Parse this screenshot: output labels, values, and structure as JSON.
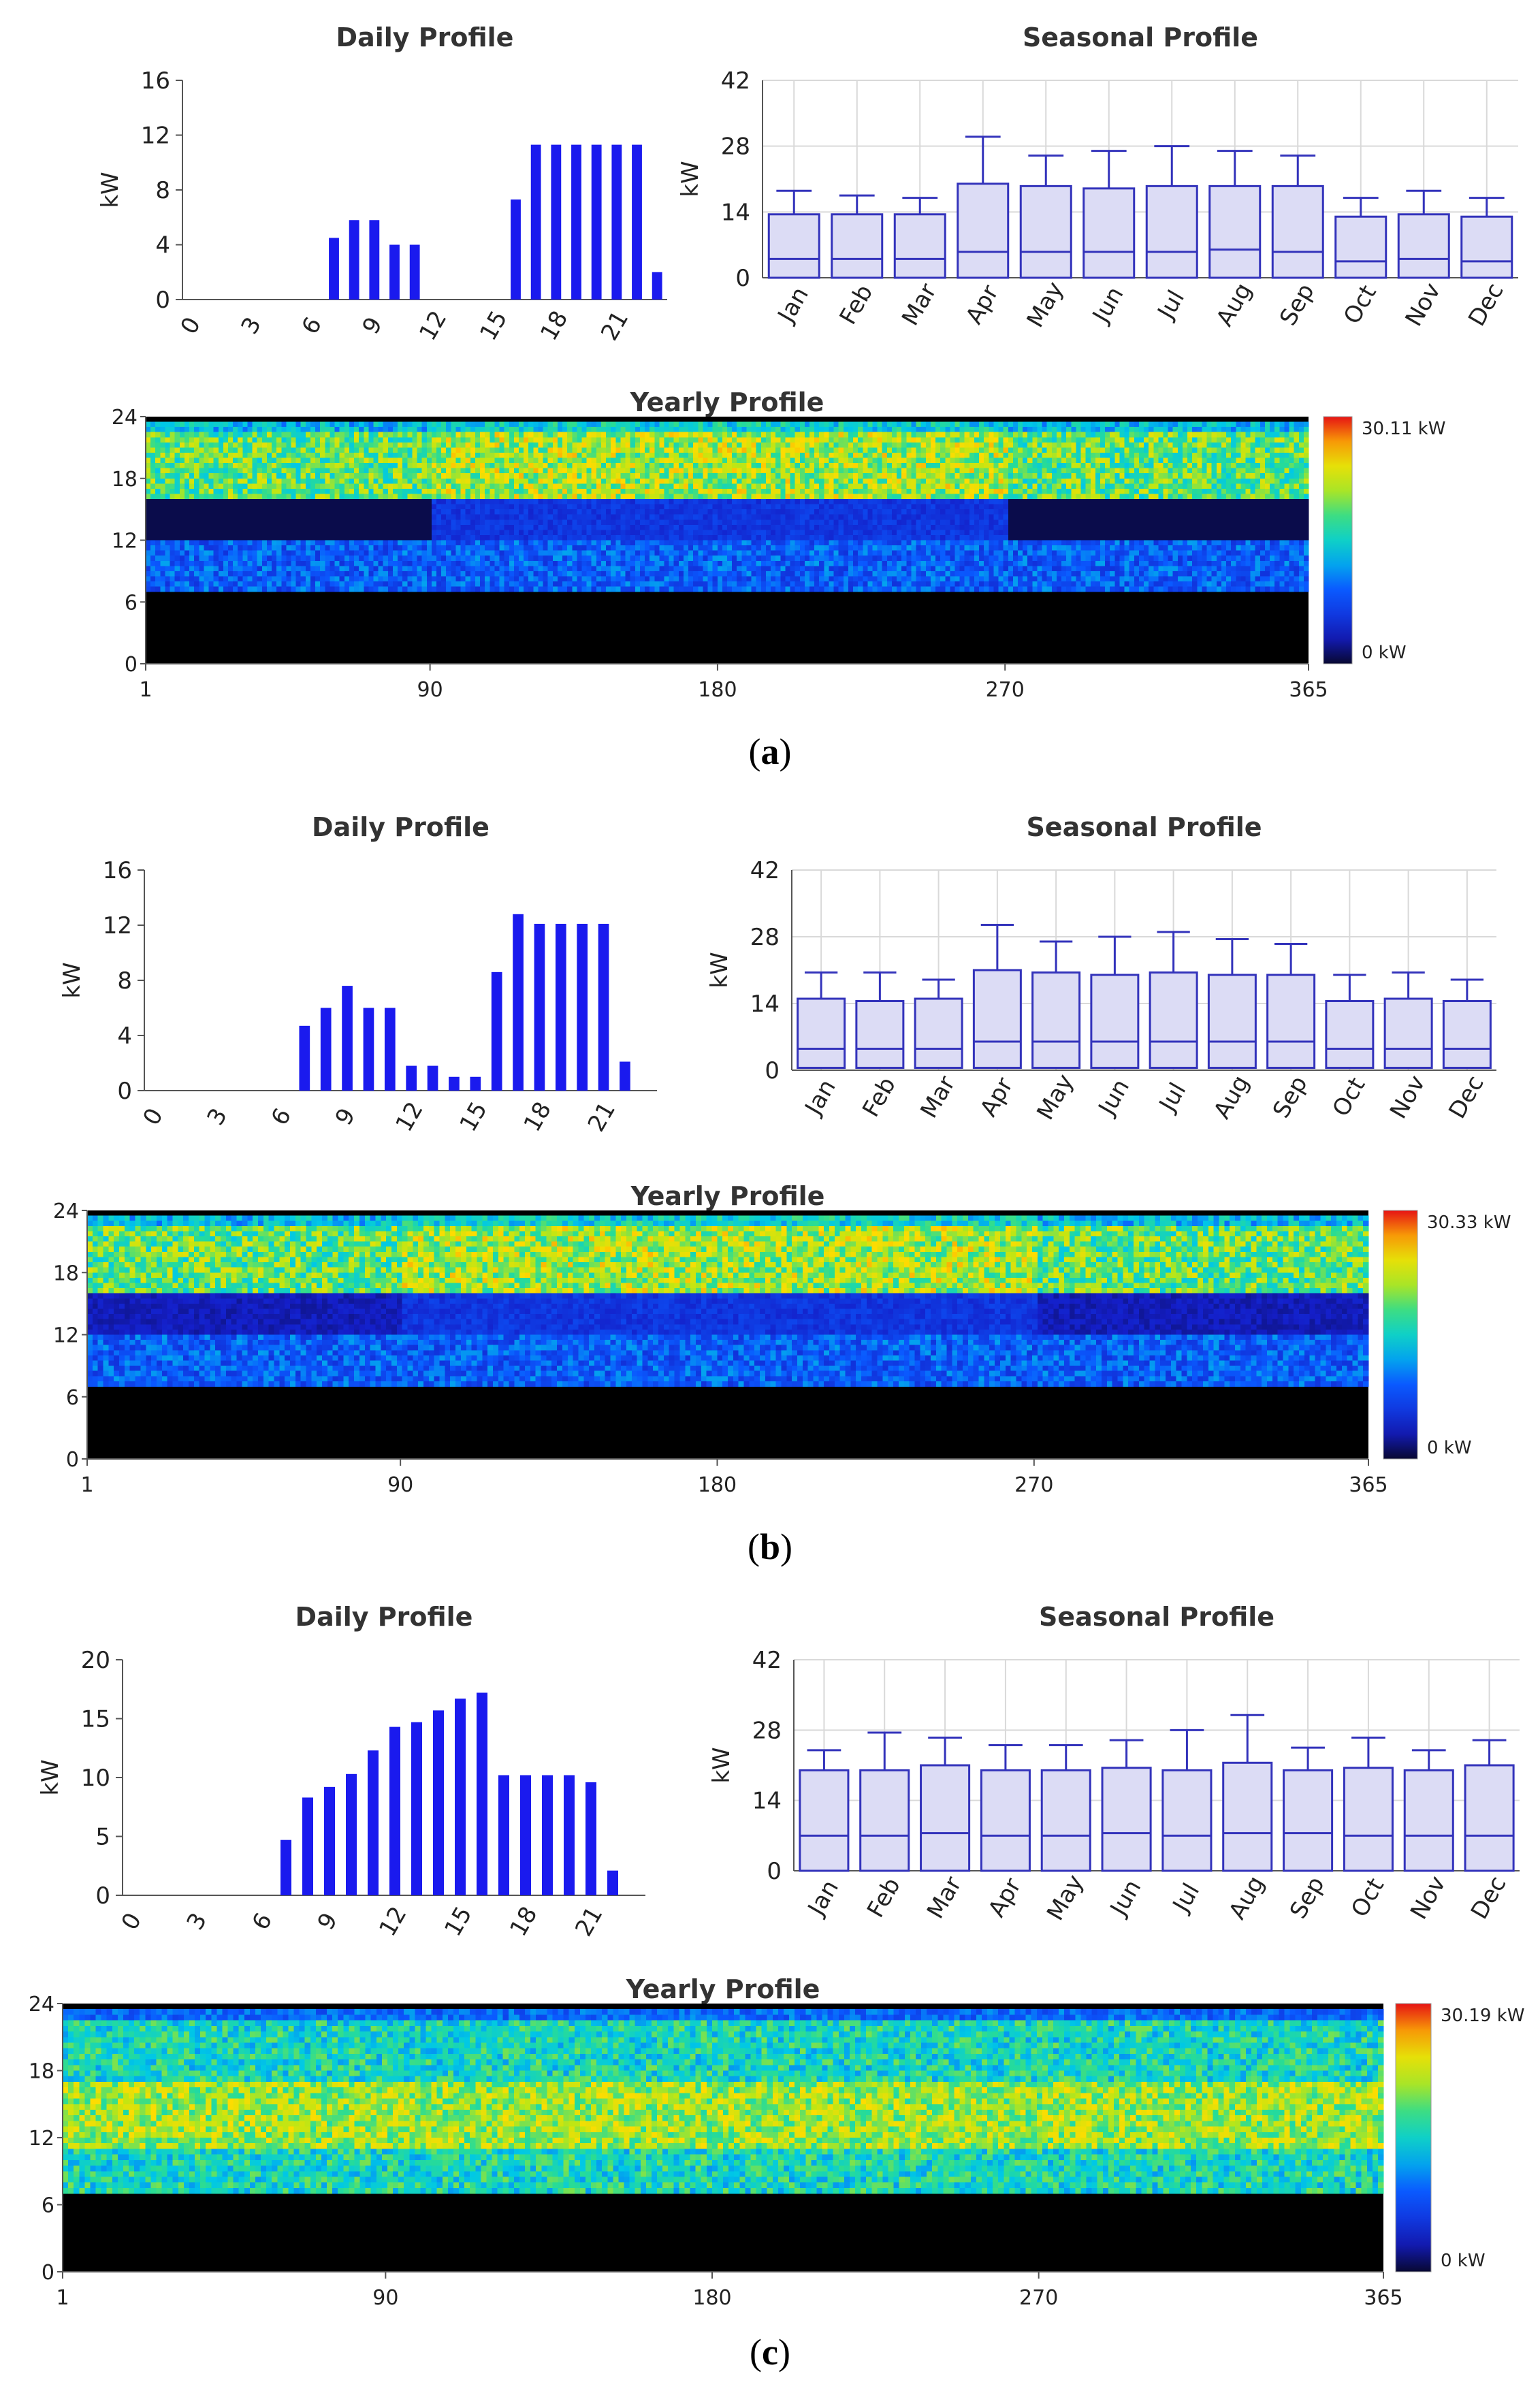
{
  "panels": [
    {
      "caption": "(a)",
      "daily": {
        "title": "Daily Profile",
        "ylabel": "kW",
        "hours": [
          0,
          1,
          2,
          3,
          4,
          5,
          6,
          7,
          8,
          9,
          10,
          11,
          12,
          13,
          14,
          15,
          16,
          17,
          18,
          19,
          20,
          21,
          22,
          23
        ],
        "values": [
          0,
          0,
          0,
          0,
          0,
          0,
          0,
          4.5,
          5.8,
          5.8,
          4,
          4,
          0,
          0,
          0,
          0,
          7.3,
          11.3,
          11.3,
          11.3,
          11.3,
          11.3,
          11.3,
          2
        ],
        "ylim": [
          0,
          16
        ],
        "yticks": [
          "0",
          "4",
          "8",
          "12",
          "16"
        ],
        "xticks": [
          "0",
          "3",
          "6",
          "9",
          "12",
          "15",
          "18",
          "21"
        ]
      },
      "seasonal": {
        "title": "Seasonal Profile",
        "ylabel": "kW",
        "months": [
          "Jan",
          "Feb",
          "Mar",
          "Apr",
          "May",
          "Jun",
          "Jul",
          "Aug",
          "Sep",
          "Oct",
          "Nov",
          "Dec"
        ],
        "box_q1": [
          0,
          0,
          0,
          0,
          0,
          0,
          0,
          0,
          0,
          0,
          0,
          0
        ],
        "box_median": [
          4,
          4,
          4,
          5.5,
          5.5,
          5.5,
          5.5,
          6,
          5.5,
          3.5,
          4,
          3.5
        ],
        "box_q3": [
          13.5,
          13.5,
          13.5,
          20,
          19.5,
          19,
          19.5,
          19.5,
          19.5,
          13,
          13.5,
          13
        ],
        "whisker_max": [
          18.5,
          17.5,
          17,
          30,
          26,
          27,
          28,
          27,
          26,
          17,
          18.5,
          17
        ],
        "ylim": [
          0,
          42
        ],
        "yticks": [
          "0",
          "14",
          "28",
          "42"
        ]
      },
      "yearly": {
        "title": "Yearly Profile",
        "xticks": [
          "1",
          "90",
          "180",
          "270",
          "365"
        ],
        "yticks": [
          "0",
          "6",
          "12",
          "18",
          "24"
        ],
        "colorbar_max_label": "30.11 kW",
        "colorbar_min_label": "0 kW",
        "off_start": 7,
        "off_end": 24,
        "black_band_hours": [
          12,
          16
        ],
        "black_band_days": [
          [
            1,
            90
          ],
          [
            270,
            365
          ]
        ]
      }
    },
    {
      "caption": "(b)",
      "daily": {
        "title": "Daily Profile",
        "ylabel": "kW",
        "hours": [
          0,
          1,
          2,
          3,
          4,
          5,
          6,
          7,
          8,
          9,
          10,
          11,
          12,
          13,
          14,
          15,
          16,
          17,
          18,
          19,
          20,
          21,
          22,
          23
        ],
        "values": [
          0,
          0,
          0,
          0,
          0,
          0,
          0,
          4.7,
          6,
          7.6,
          6,
          6,
          1.8,
          1.8,
          1,
          1,
          8.6,
          12.8,
          12.1,
          12.1,
          12.1,
          12.1,
          2.1,
          0
        ],
        "ylim": [
          0,
          16
        ],
        "yticks": [
          "0",
          "4",
          "8",
          "12",
          "16"
        ],
        "xticks": [
          "0",
          "3",
          "6",
          "9",
          "12",
          "15",
          "18",
          "21"
        ]
      },
      "seasonal": {
        "title": "Seasonal Profile",
        "ylabel": "kW",
        "months": [
          "Jan",
          "Feb",
          "Mar",
          "Apr",
          "May",
          "Jun",
          "Jul",
          "Aug",
          "Sep",
          "Oct",
          "Nov",
          "Dec"
        ],
        "box_q1": [
          0.5,
          0.5,
          0.5,
          0.5,
          0.5,
          0.5,
          0.5,
          0.5,
          0.5,
          0.5,
          0.5,
          0.5
        ],
        "box_median": [
          4.5,
          4.5,
          4.5,
          6,
          6,
          6,
          6,
          6,
          6,
          4.5,
          4.5,
          4.5
        ],
        "box_q3": [
          15,
          14.5,
          15,
          21,
          20.5,
          20,
          20.5,
          20,
          20,
          14.5,
          15,
          14.5
        ],
        "whisker_max": [
          20.5,
          20.5,
          19,
          30.5,
          27,
          28,
          29,
          27.5,
          26.5,
          20,
          20.5,
          19
        ],
        "ylim": [
          0,
          42
        ],
        "yticks": [
          "0",
          "14",
          "28",
          "42"
        ]
      },
      "yearly": {
        "title": "Yearly Profile",
        "xticks": [
          "1",
          "90",
          "180",
          "270",
          "365"
        ],
        "yticks": [
          "0",
          "6",
          "12",
          "18",
          "24"
        ],
        "colorbar_max_label": "30.33 kW",
        "colorbar_min_label": "0 kW",
        "off_start": 7,
        "off_end": 24,
        "black_band_hours": [
          12,
          16
        ],
        "black_band_days": [
          [
            1,
            90
          ],
          [
            270,
            365
          ]
        ]
      }
    },
    {
      "caption": "(c)",
      "daily": {
        "title": "Daily Profile",
        "ylabel": "kW",
        "hours": [
          0,
          1,
          2,
          3,
          4,
          5,
          6,
          7,
          8,
          9,
          10,
          11,
          12,
          13,
          14,
          15,
          16,
          17,
          18,
          19,
          20,
          21,
          22,
          23
        ],
        "values": [
          0,
          0,
          0,
          0,
          0,
          0,
          0,
          4.7,
          8.3,
          9.2,
          10.3,
          12.3,
          14.3,
          14.7,
          15.7,
          16.7,
          17.2,
          10.2,
          10.2,
          10.2,
          10.2,
          9.6,
          2.1,
          0
        ],
        "ylim": [
          0,
          20
        ],
        "yticks": [
          "0",
          "5",
          "10",
          "15",
          "20"
        ],
        "xticks": [
          "0",
          "3",
          "6",
          "9",
          "12",
          "15",
          "18",
          "21"
        ]
      },
      "seasonal": {
        "title": "Seasonal Profile",
        "ylabel": "kW",
        "months": [
          "Jan",
          "Feb",
          "Mar",
          "Apr",
          "May",
          "Jun",
          "Jul",
          "Aug",
          "Sep",
          "Oct",
          "Nov",
          "Dec"
        ],
        "box_q1": [
          0,
          0,
          0,
          0,
          0,
          0,
          0,
          0,
          0,
          0,
          0,
          0
        ],
        "box_median": [
          7,
          7,
          7.5,
          7,
          7,
          7.5,
          7,
          7.5,
          7.5,
          7,
          7,
          7
        ],
        "box_q3": [
          20,
          20,
          21,
          20,
          20,
          20.5,
          20,
          21.5,
          20,
          20.5,
          20,
          21
        ],
        "whisker_max": [
          24,
          27.5,
          26.5,
          25,
          25,
          26,
          28,
          31,
          24.5,
          26.5,
          24,
          26
        ],
        "ylim": [
          0,
          42
        ],
        "yticks": [
          "0",
          "14",
          "28",
          "42"
        ]
      },
      "yearly": {
        "title": "Yearly Profile",
        "xticks": [
          "1",
          "90",
          "180",
          "270",
          "365"
        ],
        "yticks": [
          "0",
          "6",
          "12",
          "18",
          "24"
        ],
        "colorbar_max_label": "30.19 kW",
        "colorbar_min_label": "0 kW",
        "off_start": 7,
        "off_end": 24,
        "black_band_hours": [],
        "black_band_days": []
      }
    }
  ],
  "colors": {
    "bar": "#1a1aee",
    "box_fill": "#dcdcf5",
    "box_stroke": "#3333bb",
    "grid": "#d9d9d9"
  }
}
